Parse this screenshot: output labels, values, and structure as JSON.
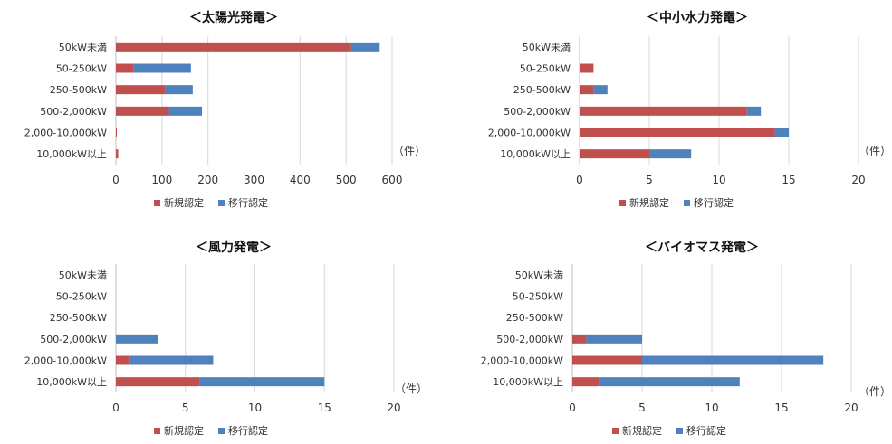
{
  "chart_data": [
    {
      "type": "bar",
      "orientation": "horizontal",
      "stacked": true,
      "title": "＜太陽光発電＞",
      "categories": [
        "50kW未満",
        "50-250kW",
        "250-500kW",
        "500-2,000kW",
        "2,000-10,000kW",
        "10,000kW以上"
      ],
      "series": [
        {
          "name": "新規認定",
          "values": [
            511,
            38,
            107,
            115,
            1,
            5
          ]
        },
        {
          "name": "移行認定",
          "values": [
            62,
            125,
            60,
            72,
            0,
            0
          ]
        }
      ],
      "xlim": [
        0,
        600
      ],
      "xticks": [
        "0",
        "100",
        "200",
        "300",
        "400",
        "500",
        "600"
      ],
      "unit": "（件）",
      "grid": true,
      "legend": "bottom"
    },
    {
      "type": "bar",
      "orientation": "horizontal",
      "stacked": true,
      "title": "＜中小水力発電＞",
      "categories": [
        "50kW未満",
        "50-250kW",
        "250-500kW",
        "500-2,000kW",
        "2,000-10,000kW",
        "10,000kW以上"
      ],
      "series": [
        {
          "name": "新規認定",
          "values": [
            0,
            1,
            1,
            12,
            14,
            5
          ]
        },
        {
          "name": "移行認定",
          "values": [
            0,
            0,
            1,
            1,
            1,
            3
          ]
        }
      ],
      "xlim": [
        0,
        20
      ],
      "xticks": [
        "0",
        "5",
        "10",
        "15",
        "20"
      ],
      "unit": "（件）",
      "grid": true,
      "legend": "bottom"
    },
    {
      "type": "bar",
      "orientation": "horizontal",
      "stacked": true,
      "title": "＜風力発電＞",
      "categories": [
        "50kW未満",
        "50-250kW",
        "250-500kW",
        "500-2,000kW",
        "2,000-10,000kW",
        "10,000kW以上"
      ],
      "series": [
        {
          "name": "新規認定",
          "values": [
            0,
            0,
            0,
            0,
            1,
            6
          ]
        },
        {
          "name": "移行認定",
          "values": [
            0,
            0,
            0,
            3,
            6,
            9
          ]
        }
      ],
      "xlim": [
        0,
        20
      ],
      "xticks": [
        "0",
        "5",
        "10",
        "15",
        "20"
      ],
      "unit": "（件）",
      "grid": true,
      "legend": "bottom"
    },
    {
      "type": "bar",
      "orientation": "horizontal",
      "stacked": true,
      "title": "＜バイオマス発電＞",
      "categories": [
        "50kW未満",
        "50-250kW",
        "250-500kW",
        "500-2,000kW",
        "2,000-10,000kW",
        "10,000kW以上"
      ],
      "series": [
        {
          "name": "新規認定",
          "values": [
            0,
            0,
            0,
            1,
            5,
            2
          ]
        },
        {
          "name": "移行認定",
          "values": [
            0,
            0,
            0,
            4,
            13,
            10
          ]
        }
      ],
      "xlim": [
        0,
        20
      ],
      "xticks": [
        "0",
        "5",
        "10",
        "15",
        "20"
      ],
      "unit": "（件）",
      "grid": true,
      "legend": "bottom"
    }
  ],
  "colors": {
    "新規認定": "#c0504d",
    "移行認定": "#4f81bd"
  }
}
